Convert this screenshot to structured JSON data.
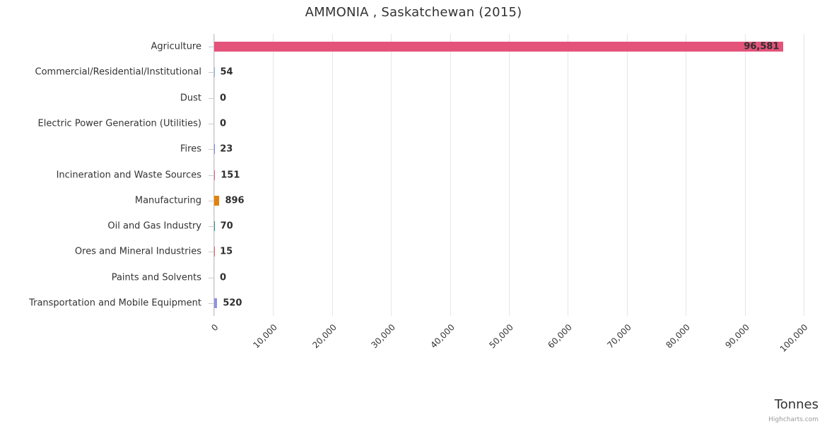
{
  "title": "AMMONIA , Saskatchewan (2015)",
  "credits": "Highcharts.com",
  "chart_data": {
    "type": "bar",
    "orientation": "horizontal",
    "title": "AMMONIA , Saskatchewan (2015)",
    "xlabel": "Tonnes",
    "ylabel": "",
    "legend": false,
    "grid": true,
    "categories": [
      "Agriculture",
      "Commercial/Residential/Institutional",
      "Dust",
      "Electric Power Generation (Utilities)",
      "Fires",
      "Incineration and Waste Sources",
      "Manufacturing",
      "Oil and Gas Industry",
      "Ores and Mineral Industries",
      "Paints and Solvents",
      "Transportation and Mobile Equipment"
    ],
    "values": [
      96581,
      54,
      0,
      0,
      23,
      151,
      896,
      70,
      15,
      0,
      520
    ],
    "value_labels": [
      "96,581",
      "54",
      "0",
      "0",
      "23",
      "151",
      "896",
      "70",
      "15",
      "0",
      "520"
    ],
    "bar_colors": [
      "#e4537a",
      "#7cb5ec",
      "#90ed7d",
      "#f7a35c",
      "#8085e9",
      "#f15c80",
      "#e2820d",
      "#2b908f",
      "#f45b5b",
      "#91e8e1",
      "#8f93e0"
    ],
    "xlim": [
      0,
      100000
    ],
    "x_ticks": [
      0,
      10000,
      20000,
      30000,
      40000,
      50000,
      60000,
      70000,
      80000,
      90000,
      100000
    ],
    "x_tick_labels": [
      "0",
      "10,000",
      "20,000",
      "30,000",
      "40,000",
      "50,000",
      "60,000",
      "70,000",
      "80,000",
      "90,000",
      "100,000"
    ]
  }
}
